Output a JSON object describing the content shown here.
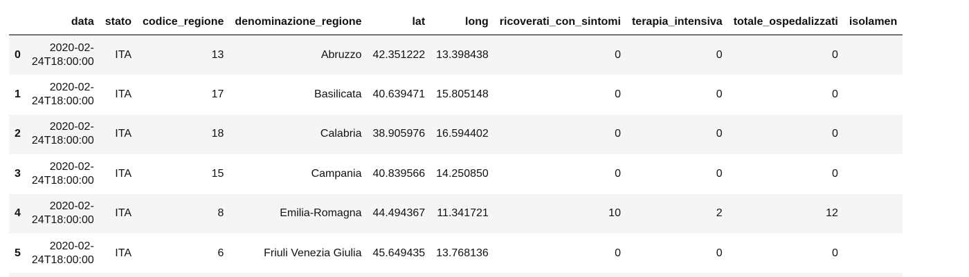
{
  "table": {
    "columns": [
      "",
      "data",
      "stato",
      "codice_regione",
      "denominazione_regione",
      "lat",
      "long",
      "ricoverati_con_sintomi",
      "terapia_intensiva",
      "totale_ospedalizzati",
      "isolamen"
    ],
    "rows": [
      {
        "index": "0",
        "data_l1": "2020-02-",
        "data_l2": "24T18:00:00",
        "stato": "ITA",
        "codice_regione": "13",
        "denominazione_regione": "Abruzzo",
        "lat": "42.351222",
        "long": "13.398438",
        "ricoverati_con_sintomi": "0",
        "terapia_intensiva": "0",
        "totale_ospedalizzati": "0"
      },
      {
        "index": "1",
        "data_l1": "2020-02-",
        "data_l2": "24T18:00:00",
        "stato": "ITA",
        "codice_regione": "17",
        "denominazione_regione": "Basilicata",
        "lat": "40.639471",
        "long": "15.805148",
        "ricoverati_con_sintomi": "0",
        "terapia_intensiva": "0",
        "totale_ospedalizzati": "0"
      },
      {
        "index": "2",
        "data_l1": "2020-02-",
        "data_l2": "24T18:00:00",
        "stato": "ITA",
        "codice_regione": "18",
        "denominazione_regione": "Calabria",
        "lat": "38.905976",
        "long": "16.594402",
        "ricoverati_con_sintomi": "0",
        "terapia_intensiva": "0",
        "totale_ospedalizzati": "0"
      },
      {
        "index": "3",
        "data_l1": "2020-02-",
        "data_l2": "24T18:00:00",
        "stato": "ITA",
        "codice_regione": "15",
        "denominazione_regione": "Campania",
        "lat": "40.839566",
        "long": "14.250850",
        "ricoverati_con_sintomi": "0",
        "terapia_intensiva": "0",
        "totale_ospedalizzati": "0"
      },
      {
        "index": "4",
        "data_l1": "2020-02-",
        "data_l2": "24T18:00:00",
        "stato": "ITA",
        "codice_regione": "8",
        "denominazione_regione": "Emilia-Romagna",
        "lat": "44.494367",
        "long": "11.341721",
        "ricoverati_con_sintomi": "10",
        "terapia_intensiva": "2",
        "totale_ospedalizzati": "12"
      },
      {
        "index": "5",
        "data_l1": "2020-02-",
        "data_l2": "24T18:00:00",
        "stato": "ITA",
        "codice_regione": "6",
        "denominazione_regione": "Friuli Venezia Giulia",
        "lat": "45.649435",
        "long": "13.768136",
        "ricoverati_con_sintomi": "0",
        "terapia_intensiva": "0",
        "totale_ospedalizzati": "0"
      }
    ]
  }
}
